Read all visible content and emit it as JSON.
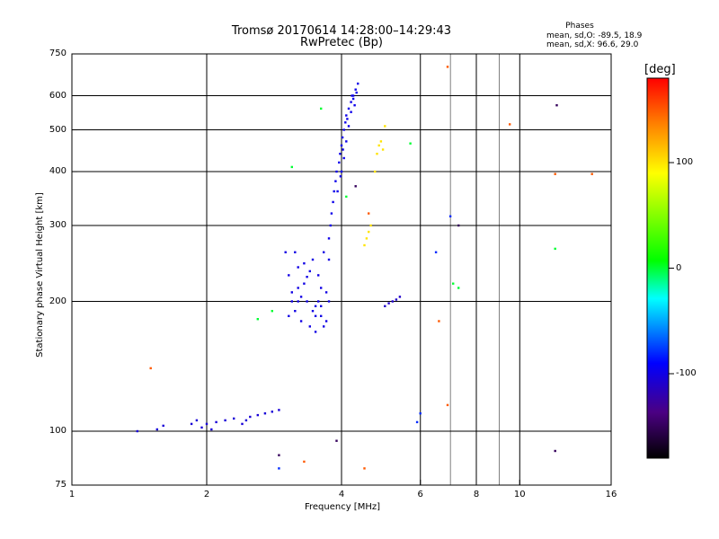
{
  "header": {
    "title_line1": "Tromsø 20170614 14:28:00–14:29:43",
    "title_line2": "RwPretec (Bp)"
  },
  "phase_legend": {
    "heading": "Phases",
    "line1": "mean, sd,O: -89.5, 18.9",
    "line2": "mean, sd,X:  96.6, 29.0"
  },
  "colorbar": {
    "label": "[deg]",
    "range": [
      -180,
      180
    ],
    "ticks": [
      {
        "value": 100,
        "label": "100"
      },
      {
        "value": 0,
        "label": "0"
      },
      {
        "value": -100,
        "label": "-100"
      }
    ]
  },
  "chart_data": {
    "type": "scatter",
    "title": "Tromsø 20170614 14:28:00–14:29:43",
    "subtitle": "RwPretec (Bp)",
    "xlabel": "Frequency [MHz]",
    "ylabel": "Stationary phase Virtual Height [km]",
    "x_scale": "log",
    "y_scale": "log",
    "xlim": [
      1,
      16
    ],
    "ylim": [
      75,
      750
    ],
    "x_ticks": [
      1,
      2,
      4,
      6,
      8,
      10,
      16
    ],
    "y_ticks": [
      75,
      100,
      200,
      300,
      400,
      500,
      600,
      750
    ],
    "grid": true,
    "color_variable": "phase [deg]",
    "clusters": [
      {
        "phase_deg": -105,
        "points": [
          [
            1.4,
            100
          ],
          [
            1.55,
            101
          ],
          [
            1.6,
            103
          ],
          [
            1.85,
            104
          ],
          [
            1.9,
            106
          ],
          [
            1.95,
            102
          ],
          [
            2.0,
            104
          ],
          [
            2.05,
            101
          ],
          [
            2.1,
            105
          ],
          [
            2.2,
            106
          ],
          [
            2.4,
            104
          ],
          [
            2.5,
            108
          ],
          [
            2.6,
            109
          ],
          [
            2.7,
            110
          ],
          [
            2.8,
            111
          ],
          [
            2.9,
            112
          ],
          [
            2.45,
            106
          ],
          [
            2.3,
            107
          ]
        ]
      },
      {
        "phase_deg": -100,
        "points": [
          [
            3.0,
            260
          ],
          [
            3.05,
            230
          ],
          [
            3.1,
            210
          ],
          [
            3.15,
            190
          ],
          [
            3.2,
            240
          ],
          [
            3.25,
            180
          ],
          [
            3.3,
            220
          ],
          [
            3.35,
            200
          ],
          [
            3.4,
            175
          ],
          [
            3.45,
            250
          ],
          [
            3.5,
            195
          ],
          [
            3.55,
            230
          ],
          [
            3.6,
            185
          ],
          [
            3.65,
            260
          ],
          [
            3.7,
            210
          ],
          [
            3.05,
            185
          ],
          [
            3.15,
            260
          ],
          [
            3.25,
            205
          ],
          [
            3.4,
            235
          ],
          [
            3.5,
            170
          ],
          [
            3.6,
            215
          ],
          [
            3.7,
            180
          ],
          [
            3.1,
            200
          ],
          [
            3.3,
            245
          ],
          [
            3.45,
            190
          ],
          [
            3.55,
            200
          ],
          [
            3.65,
            175
          ],
          [
            3.2,
            215
          ],
          [
            3.35,
            228
          ],
          [
            3.5,
            185
          ],
          [
            3.75,
            250
          ],
          [
            3.75,
            200
          ],
          [
            3.2,
            200
          ],
          [
            3.6,
            195
          ]
        ]
      },
      {
        "phase_deg": -98,
        "points": [
          [
            3.75,
            280
          ],
          [
            3.78,
            300
          ],
          [
            3.8,
            320
          ],
          [
            3.83,
            340
          ],
          [
            3.85,
            360
          ],
          [
            3.88,
            380
          ],
          [
            3.9,
            400
          ],
          [
            3.95,
            420
          ],
          [
            3.97,
            440
          ],
          [
            4.0,
            460
          ],
          [
            4.02,
            480
          ],
          [
            4.05,
            500
          ],
          [
            4.08,
            520
          ],
          [
            4.1,
            540
          ],
          [
            4.15,
            560
          ],
          [
            4.2,
            580
          ],
          [
            4.25,
            600
          ],
          [
            4.3,
            620
          ],
          [
            4.35,
            640
          ],
          [
            4.0,
            400
          ],
          [
            4.05,
            430
          ],
          [
            4.1,
            470
          ],
          [
            4.15,
            510
          ],
          [
            4.2,
            550
          ],
          [
            4.25,
            590
          ],
          [
            3.92,
            360
          ],
          [
            3.98,
            390
          ],
          [
            4.03,
            450
          ],
          [
            4.12,
            530
          ],
          [
            4.22,
            600
          ],
          [
            4.32,
            610
          ],
          [
            4.28,
            570
          ]
        ]
      },
      {
        "phase_deg": 100,
        "points": [
          [
            4.5,
            270
          ],
          [
            4.55,
            280
          ],
          [
            4.6,
            290
          ],
          [
            4.65,
            300
          ],
          [
            4.8,
            440
          ],
          [
            4.85,
            460
          ],
          [
            4.9,
            470
          ],
          [
            4.95,
            450
          ],
          [
            4.75,
            400
          ],
          [
            5.0,
            510
          ]
        ]
      },
      {
        "phase_deg": -110,
        "points": [
          [
            5.0,
            195
          ],
          [
            5.1,
            198
          ],
          [
            5.2,
            200
          ],
          [
            5.3,
            202
          ],
          [
            5.4,
            205
          ]
        ]
      },
      {
        "phase_deg": 0,
        "points": [
          [
            3.1,
            410
          ],
          [
            2.6,
            182
          ],
          [
            2.8,
            190
          ],
          [
            5.7,
            465
          ],
          [
            7.1,
            220
          ],
          [
            7.3,
            215
          ],
          [
            3.6,
            560
          ],
          [
            4.1,
            350
          ],
          [
            12.0,
            265
          ]
        ]
      },
      {
        "phase_deg": 150,
        "points": [
          [
            6.9,
            700
          ],
          [
            9.5,
            515
          ],
          [
            12.0,
            395
          ],
          [
            14.5,
            395
          ],
          [
            1.5,
            140
          ],
          [
            4.6,
            320
          ],
          [
            4.5,
            82
          ],
          [
            3.3,
            85
          ],
          [
            6.6,
            180
          ],
          [
            6.9,
            115
          ]
        ]
      },
      {
        "phase_deg": -150,
        "points": [
          [
            3.9,
            95
          ],
          [
            2.9,
            88
          ],
          [
            7.3,
            300
          ],
          [
            4.3,
            370
          ],
          [
            12.0,
            90
          ],
          [
            12.1,
            570
          ]
        ]
      },
      {
        "phase_deg": -80,
        "points": [
          [
            6.0,
            110
          ],
          [
            5.9,
            105
          ],
          [
            6.5,
            260
          ],
          [
            7.0,
            315
          ],
          [
            2.9,
            82
          ]
        ]
      }
    ]
  }
}
